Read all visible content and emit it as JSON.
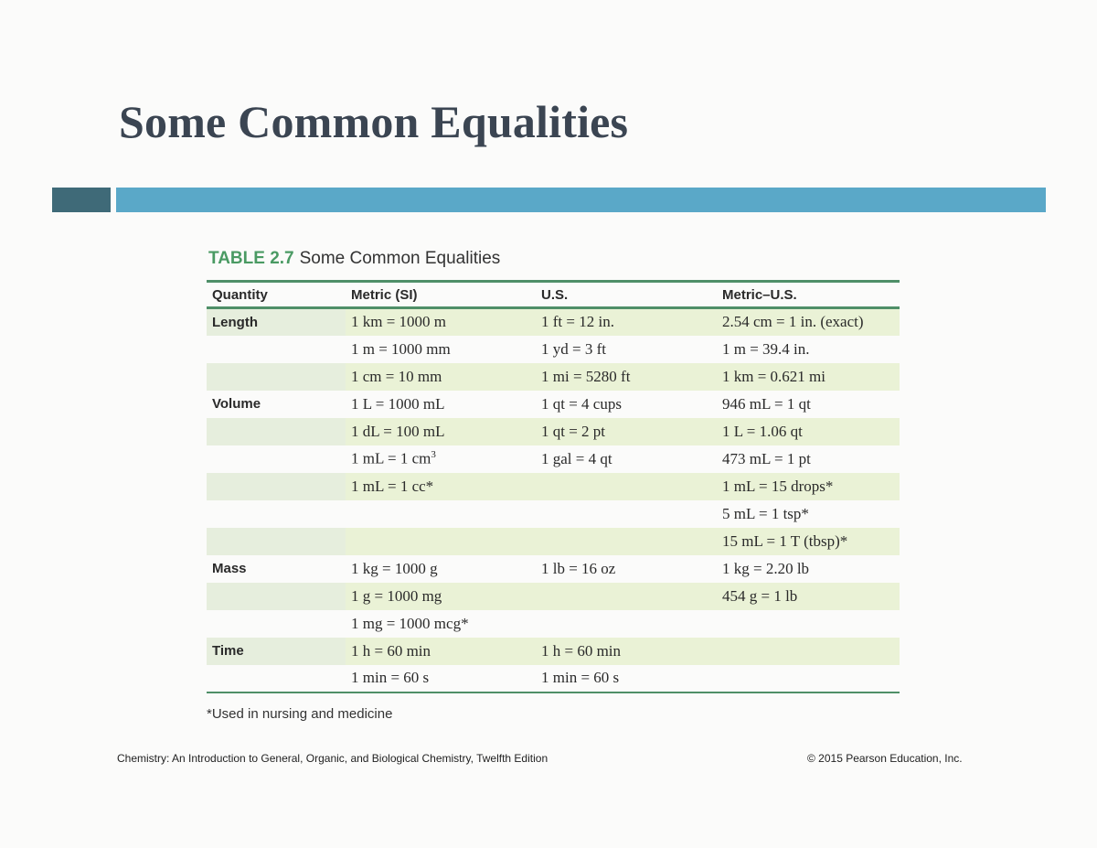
{
  "slide": {
    "title": "Some Common Equalities",
    "colors": {
      "title": "#3b4552",
      "bar_dark": "#3f6a78",
      "bar_blue": "#5aa8c8",
      "table_rule": "#4f8f68",
      "table_number": "#4a9a63",
      "row_shade": "#eaf2d6"
    }
  },
  "table": {
    "number": "TABLE 2.7",
    "caption": "Some Common Equalities",
    "headers": [
      "Quantity",
      "Metric (SI)",
      "U.S.",
      "Metric–U.S."
    ],
    "rows": [
      {
        "quantity": "Length",
        "metric": "1 km = 1000 m",
        "us": "1 ft = 12 in.",
        "metric_us": "2.54 cm = 1 in. (exact)",
        "shaded": true
      },
      {
        "quantity": "",
        "metric": "1 m = 1000 mm",
        "us": "1 yd = 3 ft",
        "metric_us": "1 m = 39.4 in.",
        "shaded": false
      },
      {
        "quantity": "",
        "metric": "1 cm = 10 mm",
        "us": "1 mi = 5280 ft",
        "metric_us": "1 km = 0.621 mi",
        "shaded": true
      },
      {
        "quantity": "Volume",
        "metric": "1 L = 1000 mL",
        "us": "1 qt = 4 cups",
        "metric_us": "946 mL = 1 qt",
        "shaded": false
      },
      {
        "quantity": "",
        "metric": "1 dL = 100 mL",
        "us": "1 qt = 2 pt",
        "metric_us": "1 L = 1.06 qt",
        "shaded": true
      },
      {
        "quantity": "",
        "metric": "1 mL = 1 cm",
        "metric_sup": "3",
        "us": "1 gal = 4 qt",
        "metric_us": "473 mL = 1 pt",
        "shaded": false
      },
      {
        "quantity": "",
        "metric": "1 mL = 1 cc*",
        "us": "",
        "metric_us": "1 mL = 15 drops*",
        "shaded": true
      },
      {
        "quantity": "",
        "metric": "",
        "us": "",
        "metric_us": "5 mL = 1 tsp*",
        "shaded": false
      },
      {
        "quantity": "",
        "metric": "",
        "us": "",
        "metric_us": "15 mL = 1 T (tbsp)*",
        "shaded": true
      },
      {
        "quantity": "Mass",
        "metric": "1 kg = 1000 g",
        "us": "1 lb = 16 oz",
        "metric_us": "1 kg = 2.20 lb",
        "shaded": false
      },
      {
        "quantity": "",
        "metric": "1 g = 1000 mg",
        "us": "",
        "metric_us": "454 g = 1 lb",
        "shaded": true
      },
      {
        "quantity": "",
        "metric": "1 mg = 1000 mcg*",
        "us": "",
        "metric_us": "",
        "shaded": false
      },
      {
        "quantity": "Time",
        "metric": "1 h = 60 min",
        "us": "1 h = 60 min",
        "metric_us": "",
        "shaded": true
      },
      {
        "quantity": "",
        "metric": "1 min = 60 s",
        "us": "1 min = 60 s",
        "metric_us": "",
        "shaded": false
      }
    ],
    "footnote": "*Used in nursing and medicine"
  },
  "footer": {
    "left": "Chemistry: An Introduction to General, Organic, and Biological Chemistry, Twelfth Edition",
    "right": "© 2015 Pearson Education, Inc."
  }
}
